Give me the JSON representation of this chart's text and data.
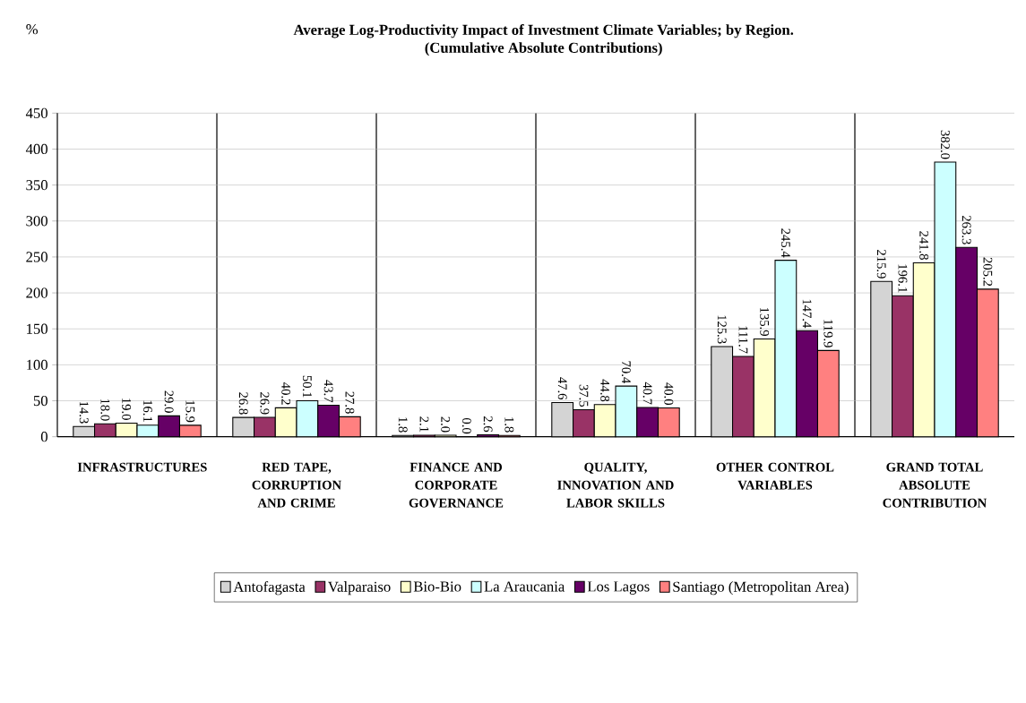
{
  "chart_data": {
    "type": "bar",
    "title": "Average Log-Productivity Impact of Investment Climate Variables; by Region.",
    "subtitle": "(Cumulative Absolute Contributions)",
    "ylabel": "%",
    "categories": [
      "INFRASTRUCTURES",
      "RED TAPE, CORRUPTION AND CRIME",
      "FINANCE AND CORPORATE GOVERNANCE",
      "QUALITY, INNOVATION AND LABOR SKILLS",
      "OTHER CONTROL VARIABLES",
      "GRAND TOTAL ABSOLUTE CONTRIBUTION"
    ],
    "series": [
      {
        "name": "Antofagasta",
        "color": "#d4d4d4",
        "values": [
          14.3,
          26.8,
          1.8,
          47.6,
          125.3,
          215.9
        ],
        "value_labels": [
          "14.3",
          "26.8",
          "1.8",
          "47.6",
          "125.3",
          "215.9"
        ]
      },
      {
        "name": "Valparaiso",
        "color": "#993366",
        "values": [
          18.0,
          26.9,
          2.1,
          37.5,
          111.7,
          196.1
        ],
        "value_labels": [
          "18.0",
          "26.9",
          "2.1",
          "37.5",
          "111.7",
          "196.1"
        ]
      },
      {
        "name": "Bio-Bio",
        "color": "#ffffcc",
        "values": [
          19.0,
          40.2,
          2.0,
          44.8,
          135.9,
          241.8
        ],
        "value_labels": [
          "19.0",
          "40.2",
          "2.0",
          "44.8",
          "135.9",
          "241.8"
        ]
      },
      {
        "name": "La Araucania",
        "color": "#ccffff",
        "values": [
          16.1,
          50.1,
          0.0,
          70.4,
          245.4,
          382.0
        ],
        "value_labels": [
          "16.1",
          "50.1",
          "0.0",
          "70.4",
          "245.4",
          "382.0"
        ]
      },
      {
        "name": "Los Lagos",
        "color": "#660066",
        "values": [
          29.0,
          43.7,
          2.6,
          40.7,
          147.4,
          263.3
        ],
        "value_labels": [
          "29.0",
          "43.7",
          "2.6",
          "40.7",
          "147.4",
          "263.3"
        ]
      },
      {
        "name": "Santiago (Metropolitan Area)",
        "color": "#ff8080",
        "values": [
          15.9,
          27.8,
          1.8,
          40.0,
          119.9,
          205.2
        ],
        "value_labels": [
          "15.9",
          "27.8",
          "1.8",
          "40.0",
          "119.9",
          "205.2"
        ]
      }
    ],
    "ylim": [
      0,
      450
    ],
    "yticks": [
      0,
      50,
      100,
      150,
      200,
      250,
      300,
      350,
      400,
      450
    ],
    "grid": true,
    "legend": "bottom"
  }
}
